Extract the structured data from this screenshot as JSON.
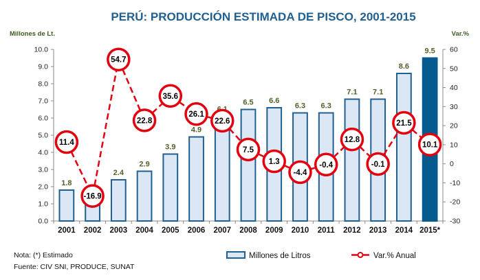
{
  "chart_data": {
    "type": "bar+line",
    "title": "PERÚ: PRODUCCIÓN ESTIMADA DE PISCO, 2001-2015",
    "categories": [
      "2001",
      "2002",
      "2003",
      "2004",
      "2005",
      "2006",
      "2007",
      "2008",
      "2009",
      "2010",
      "2011",
      "2012",
      "2013",
      "2014",
      "2015*"
    ],
    "series": [
      {
        "name": "Millones de Litros",
        "type": "bar",
        "axis": "left",
        "values": [
          1.8,
          1.5,
          2.4,
          2.9,
          3.9,
          4.9,
          6.1,
          6.5,
          6.6,
          6.3,
          6.3,
          7.1,
          7.1,
          8.6,
          9.5
        ],
        "labels": [
          "1.8",
          "1.5",
          "2.4",
          "2.9",
          "3.9",
          "4.9",
          "6.1",
          "6.5",
          "6.6",
          "6.3",
          "6.3",
          "7.1",
          "7.1",
          "8.6",
          "9.5"
        ],
        "highlight_last": true
      },
      {
        "name": "Var.% Anual",
        "type": "line",
        "axis": "right",
        "values": [
          11.4,
          -16.9,
          54.7,
          22.8,
          35.6,
          26.1,
          22.6,
          7.5,
          1.3,
          -4.4,
          -0.4,
          12.8,
          -0.1,
          21.5,
          10.1
        ],
        "labels": [
          "11.4",
          "-16.9",
          "54.7",
          "22.8",
          "35.6",
          "26.1",
          "22.6",
          "7.5",
          "1.3",
          "-4.4",
          "-0.4",
          "12.8",
          "-0.1",
          "21.5",
          "10.1"
        ]
      }
    ],
    "y_left": {
      "label": "Millones de Lt.",
      "range": [
        0,
        10
      ],
      "ticks": [
        "0.0",
        "1.0",
        "2.0",
        "3.0",
        "4.0",
        "5.0",
        "6.0",
        "7.0",
        "8.0",
        "9.0",
        "10.0"
      ]
    },
    "y_right": {
      "label": "Var.%",
      "range": [
        -30,
        60
      ],
      "ticks": [
        "-30",
        "-20",
        "-10",
        "0",
        "10",
        "20",
        "30",
        "40",
        "50",
        "60"
      ]
    },
    "grid": false,
    "legend_position": "bottom-center",
    "colors": {
      "title": "#1f5f91",
      "bar_fill": "#dbe7f4",
      "bar_stroke": "#1f5f91",
      "bar_highlight": "#045a8d",
      "bar_label": "#4f6228",
      "line": "#e3000f",
      "axis_unit": "#3d5a1e"
    }
  },
  "notes": {
    "nota": "Nota: (*) Estimado",
    "fuente": "Fuente: CIV SNI, PRODUCE, SUNAT"
  },
  "legend": {
    "bar": "Millones de Litros",
    "line": "Var.% Anual"
  }
}
